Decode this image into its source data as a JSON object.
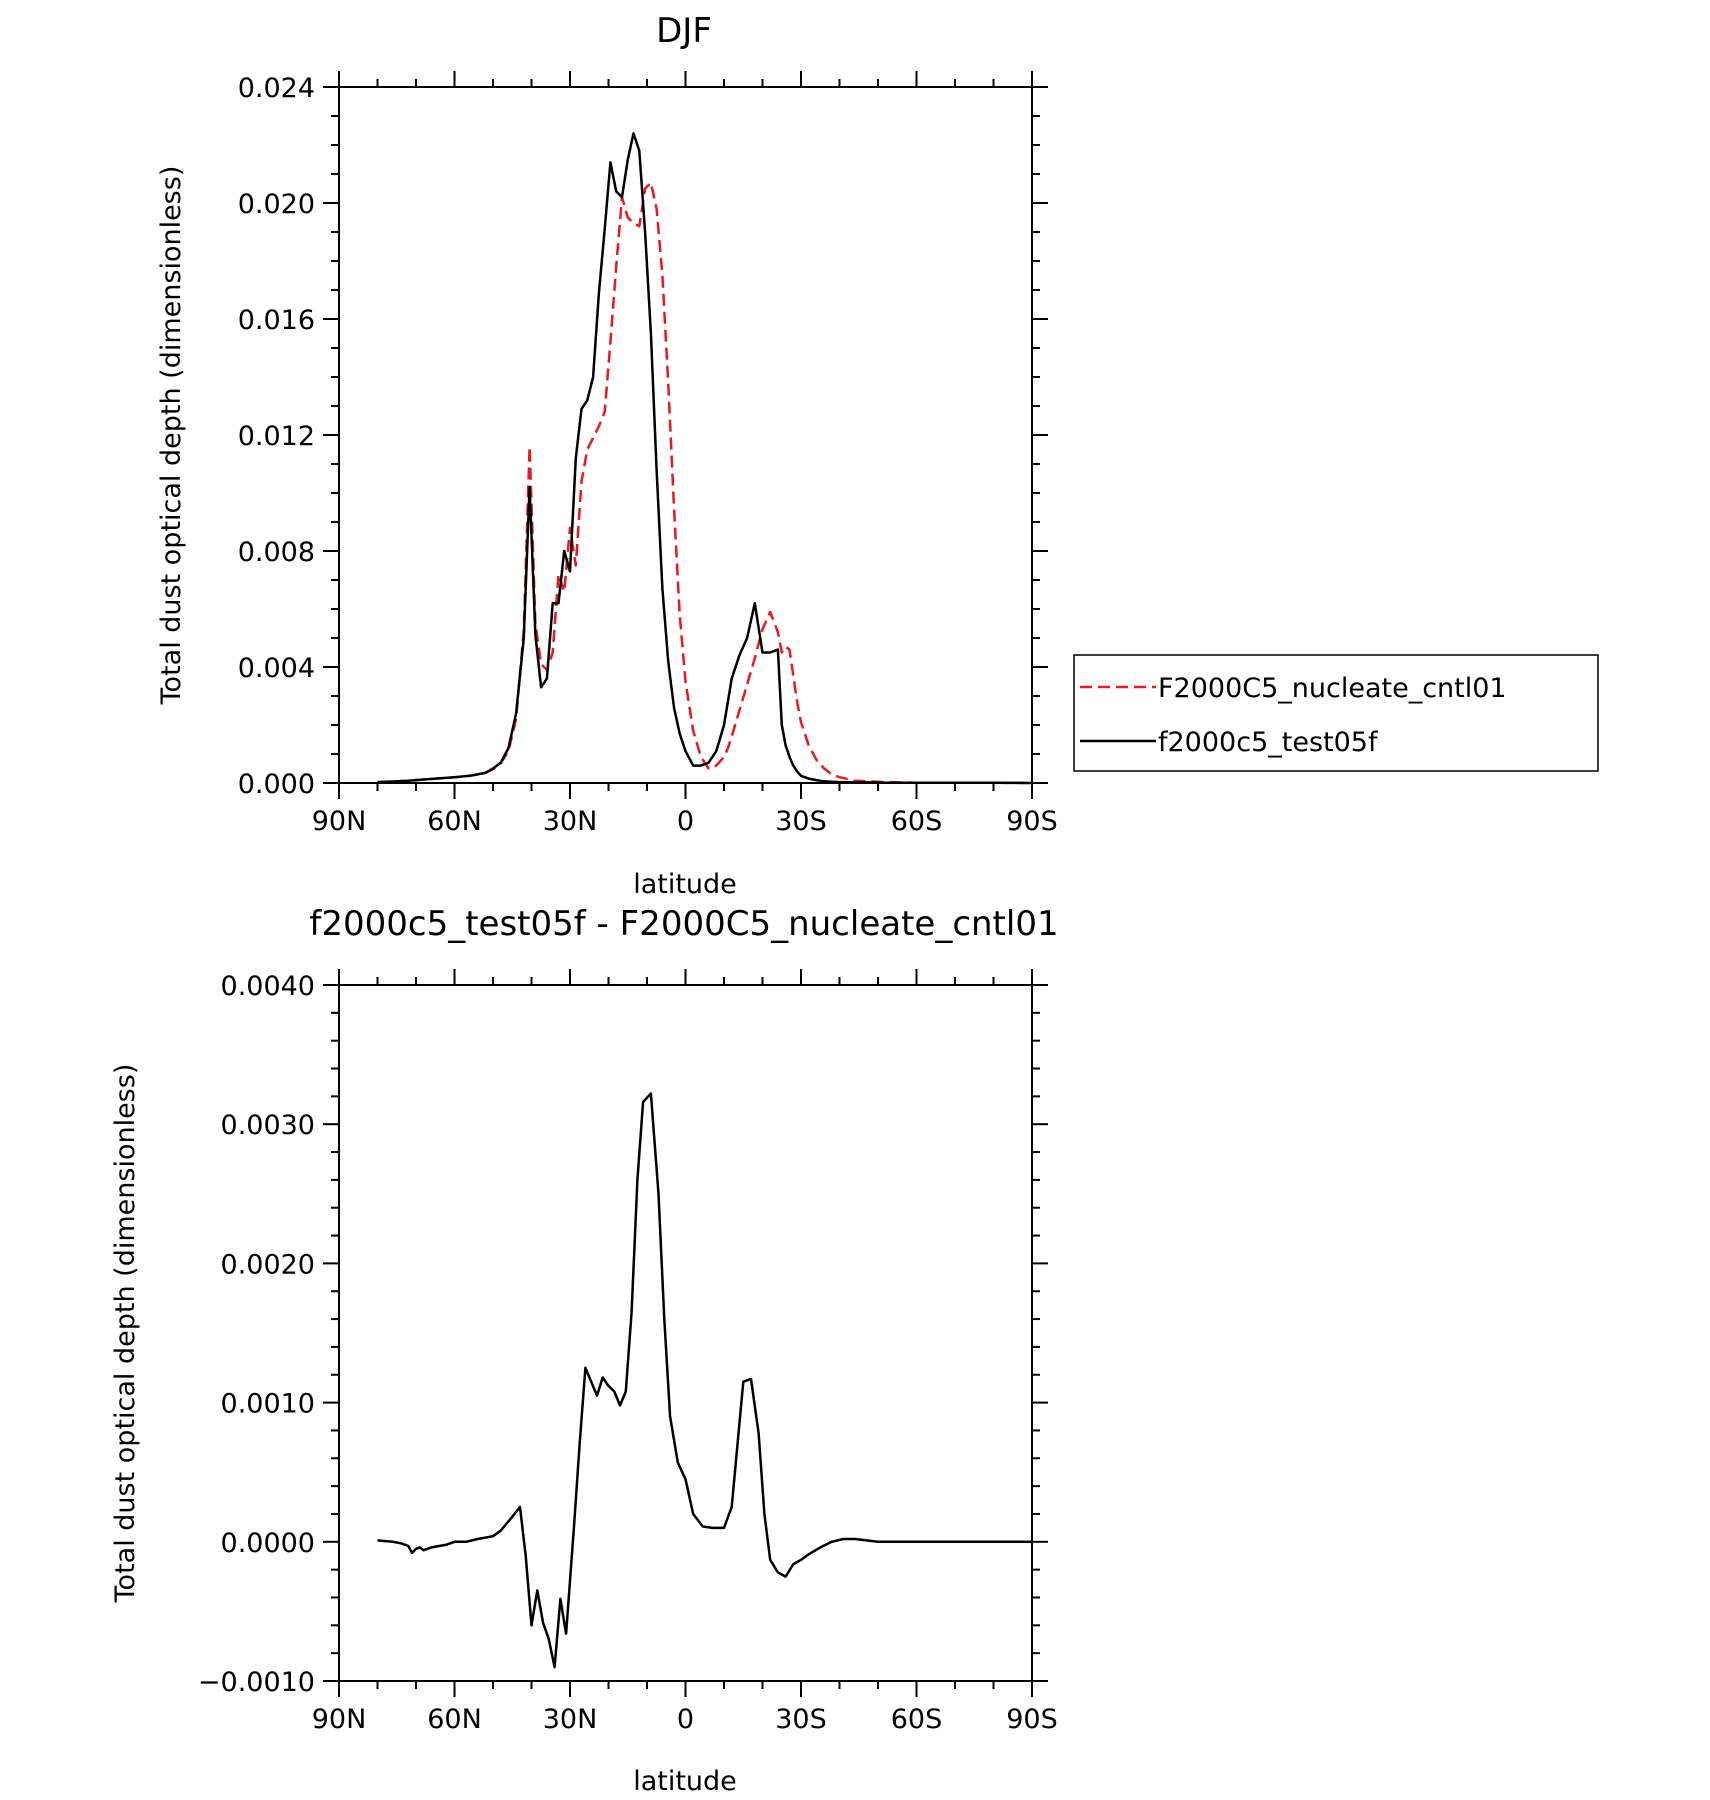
{
  "chart_data": [
    {
      "type": "line",
      "title": "DJF",
      "xlabel": "latitude",
      "ylabel": "Total dust optical depth (dimensionless)",
      "xlim": [
        90,
        -90
      ],
      "ylim": [
        0,
        0.024
      ],
      "xticks": [
        90,
        60,
        30,
        0,
        -30,
        -60,
        -90
      ],
      "xtick_labels": [
        "90N",
        "60N",
        "30N",
        "0",
        "30S",
        "60S",
        "90S"
      ],
      "yticks": [
        0,
        0.004,
        0.008,
        0.012,
        0.016,
        0.02,
        0.024
      ],
      "ytick_labels": [
        "0.000",
        "0.004",
        "0.008",
        "0.012",
        "0.016",
        "0.020",
        "0.024"
      ],
      "legend_position": "right",
      "series": [
        {
          "name": "F2000C5_nucleate_cntl01",
          "color": "#e8191f",
          "dash": "dashed",
          "x": [
            80,
            76,
            72,
            68,
            64,
            60,
            56,
            52,
            50,
            48,
            46,
            44,
            42,
            40.5,
            39,
            37.5,
            36,
            34.5,
            33,
            31.5,
            30,
            28.5,
            27,
            25.5,
            24,
            22.5,
            21,
            19.5,
            18,
            16.5,
            15,
            13.5,
            12,
            10.5,
            9,
            7.5,
            6,
            4.5,
            3,
            1.5,
            0,
            -2,
            -4,
            -6,
            -8,
            -10,
            -11,
            -12,
            -14,
            -16,
            -18,
            -20,
            -22,
            -24,
            -25,
            -26,
            -27,
            -28,
            -29,
            -30,
            -32,
            -34,
            -36,
            -38,
            -40,
            -44,
            -48,
            -52,
            -56,
            -60,
            -70,
            -80,
            -90
          ],
          "y": [
            3e-05,
            5e-05,
            8e-05,
            0.00012,
            0.00016,
            0.0002,
            0.00025,
            0.00035,
            0.00048,
            0.00068,
            0.0011,
            0.0022,
            0.0053,
            0.0116,
            0.0055,
            0.0041,
            0.0039,
            0.0045,
            0.0072,
            0.0066,
            0.0088,
            0.0075,
            0.0104,
            0.0115,
            0.0119,
            0.0123,
            0.0128,
            0.0152,
            0.0178,
            0.0202,
            0.0195,
            0.0193,
            0.0192,
            0.0205,
            0.0207,
            0.0198,
            0.0175,
            0.0138,
            0.0095,
            0.0058,
            0.0035,
            0.0018,
            0.0009,
            0.0005,
            0.0006,
            0.0009,
            0.0012,
            0.0016,
            0.0025,
            0.0034,
            0.0043,
            0.0053,
            0.0059,
            0.0052,
            0.0045,
            0.0047,
            0.0046,
            0.0037,
            0.0028,
            0.0021,
            0.0013,
            0.0008,
            0.0005,
            0.0003,
            0.0002,
            8e-05,
            5e-05,
            3e-05,
            2e-05,
            1e-05,
            1e-05,
            1e-05,
            0.0
          ]
        },
        {
          "name": "f2000c5_test05f",
          "color": "#000000",
          "dash": "solid",
          "x": [
            80,
            76,
            72,
            68,
            64,
            60,
            56,
            52,
            50,
            48,
            46,
            44,
            42,
            40.5,
            39,
            37.5,
            36,
            34.5,
            33,
            31.5,
            30,
            28.5,
            27,
            25.5,
            24,
            22.5,
            21,
            19.5,
            18,
            16.5,
            15,
            13.5,
            12,
            10.5,
            9,
            7.5,
            6,
            4.5,
            3,
            1.5,
            0,
            -2,
            -4,
            -6,
            -8,
            -10,
            -11,
            -12,
            -14,
            -16,
            -18,
            -20,
            -22,
            -24,
            -25,
            -26,
            -27,
            -28,
            -29,
            -30,
            -32,
            -34,
            -36,
            -38,
            -40,
            -44,
            -48,
            -52,
            -56,
            -60,
            -70,
            -80,
            -90
          ],
          "y": [
            3e-05,
            5e-05,
            8e-05,
            0.00012,
            0.00016,
            0.0002,
            0.00025,
            0.00035,
            0.0005,
            0.0007,
            0.0012,
            0.0024,
            0.005,
            0.0102,
            0.0051,
            0.0033,
            0.0036,
            0.0062,
            0.0062,
            0.008,
            0.0073,
            0.0112,
            0.0129,
            0.0132,
            0.014,
            0.0169,
            0.0191,
            0.0214,
            0.0204,
            0.0202,
            0.0215,
            0.0224,
            0.0218,
            0.019,
            0.0155,
            0.0108,
            0.0067,
            0.0042,
            0.0026,
            0.0017,
            0.0011,
            0.0006,
            0.0006,
            0.0007,
            0.0011,
            0.002,
            0.0028,
            0.0036,
            0.0044,
            0.005,
            0.0062,
            0.0045,
            0.0045,
            0.0046,
            0.002,
            0.0013,
            0.0009,
            0.0006,
            0.0004,
            0.00025,
            0.00015,
            0.0001,
            6e-05,
            4e-05,
            3e-05,
            2e-05,
            2e-05,
            1e-05,
            1e-05,
            1e-05,
            1e-05,
            1e-05,
            0.0
          ]
        }
      ]
    },
    {
      "type": "line",
      "title": "f2000c5_test05f - F2000C5_nucleate_cntl01",
      "xlabel": "latitude",
      "ylabel": "Total dust optical depth (dimensionless)",
      "xlim": [
        90,
        -90
      ],
      "ylim": [
        -0.001,
        0.004
      ],
      "xticks": [
        90,
        60,
        30,
        0,
        -30,
        -60,
        -90
      ],
      "xtick_labels": [
        "90N",
        "60N",
        "30N",
        "0",
        "30S",
        "60S",
        "90S"
      ],
      "yticks": [
        -0.001,
        0,
        0.001,
        0.002,
        0.003,
        0.004
      ],
      "ytick_labels": [
        "−0.0010",
        "0.0000",
        "0.0010",
        "0.0020",
        "0.0030",
        "0.0040"
      ],
      "series": [
        {
          "color": "#000000",
          "dash": "solid",
          "x": [
            80,
            76,
            74,
            72,
            71,
            70,
            69,
            68,
            66,
            64,
            62,
            60,
            57,
            54,
            52,
            50,
            48,
            45,
            43,
            41.5,
            40,
            38.5,
            37,
            35.5,
            34,
            32.5,
            31,
            29,
            27.5,
            26,
            24.5,
            23,
            21.5,
            20,
            18.5,
            17,
            15.5,
            14,
            12.5,
            11,
            9,
            7,
            5.5,
            4,
            2,
            0,
            -2,
            -4.5,
            -7,
            -10,
            -12,
            -15,
            -17,
            -19,
            -20.5,
            -22,
            -24,
            -26,
            -28,
            -30,
            -32,
            -35,
            -38,
            -41,
            -44,
            -47,
            -50,
            -53,
            -56,
            -60,
            -70,
            -80,
            -90
          ],
          "y": [
            1e-05,
            0.0,
            -1e-05,
            -3e-05,
            -8e-05,
            -5e-05,
            -4e-05,
            -6e-05,
            -4e-05,
            -3e-05,
            -2e-05,
            0.0,
            0.0,
            2e-05,
            3e-05,
            4e-05,
            8e-05,
            0.00018,
            0.00025,
            -0.0001,
            -0.0006,
            -0.00035,
            -0.00058,
            -0.0007,
            -0.0009,
            -0.00041,
            -0.00066,
            0.0001,
            0.0007,
            0.00125,
            0.00115,
            0.00105,
            0.00118,
            0.00112,
            0.00108,
            0.00098,
            0.00108,
            0.00165,
            0.0026,
            0.00316,
            0.00322,
            0.0025,
            0.0016,
            0.0009,
            0.00057,
            0.00045,
            0.0002,
            0.00011,
            0.0001,
            0.0001,
            0.00025,
            0.00115,
            0.00117,
            0.00078,
            0.0002,
            -0.00013,
            -0.00022,
            -0.00025,
            -0.00016,
            -0.00013,
            -9e-05,
            -4e-05,
            0.0,
            2e-05,
            2e-05,
            1e-05,
            0.0,
            0.0,
            0.0,
            0.0,
            0.0,
            0.0,
            0.0
          ]
        }
      ]
    }
  ]
}
